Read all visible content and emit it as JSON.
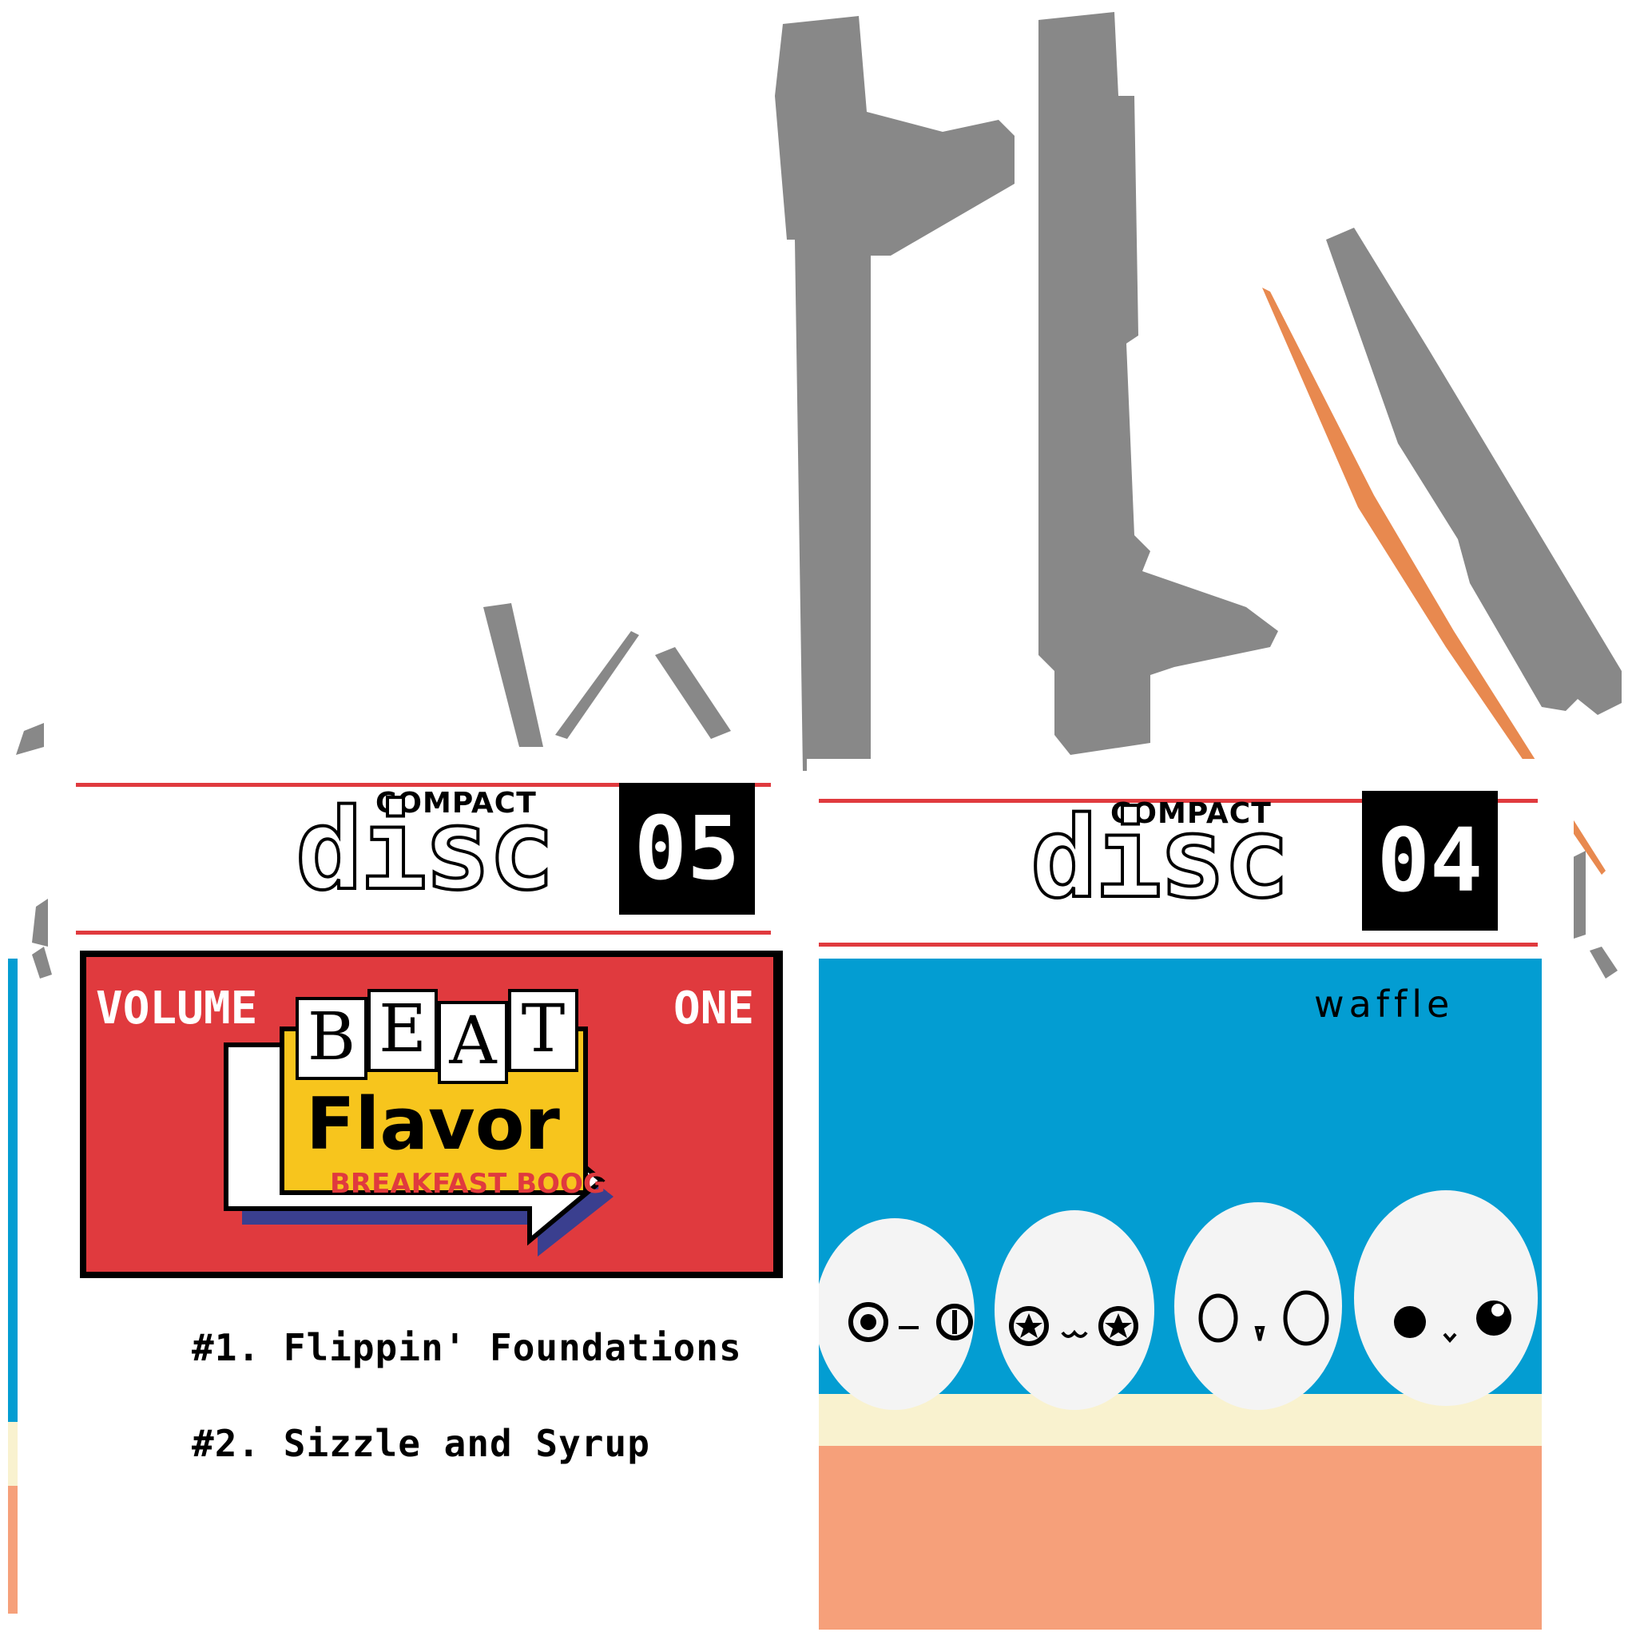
{
  "left_cd": {
    "compact_label": "COMPACT",
    "disc_word": "disc",
    "number": "05",
    "cover": {
      "volume_label": "VOLUME",
      "one_label": "ONE",
      "logo_letters": [
        "B",
        "E",
        "A",
        "T"
      ],
      "logo_script": "Flavor",
      "logo_tagline": "BREAKFAST BOOGIE",
      "background_color": "#e03a3e",
      "accent_color": "#f7c51d"
    },
    "tracks": [
      "#1. Flippin' Foundations",
      "#2. Sizzle and Syrup"
    ]
  },
  "right_cd": {
    "compact_label": "COMPACT",
    "disc_word": "disc",
    "number": "04",
    "cover": {
      "title": "waffle",
      "background_color": "#039dd2",
      "plate_color": "#f9f2cf",
      "floor_color": "#f6a07a"
    }
  }
}
